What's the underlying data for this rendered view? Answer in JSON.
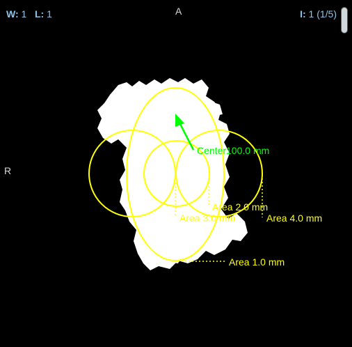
{
  "viewport": {
    "window_label": "W:",
    "window_value": "1",
    "level_label": "L:",
    "level_value": "1",
    "orientation_top": "A",
    "orientation_left": "R",
    "image_label": "I:",
    "image_value": "1 (1/5)"
  },
  "colors": {
    "background": "#000000",
    "overlay_info": "#8fc4e8",
    "orientation": "#d8d8d8",
    "shape": "#ffffff",
    "roi_yellow": "#ffff00",
    "arrow_green": "#00ff00"
  },
  "annotations": {
    "arrow_label": "Center100.0 mm",
    "area_1": "Area 1.0 mm",
    "area_2": "Area 2.0 mm",
    "area_3": "Area 3.0 mm",
    "area_4": "Area 4.0 mm"
  }
}
